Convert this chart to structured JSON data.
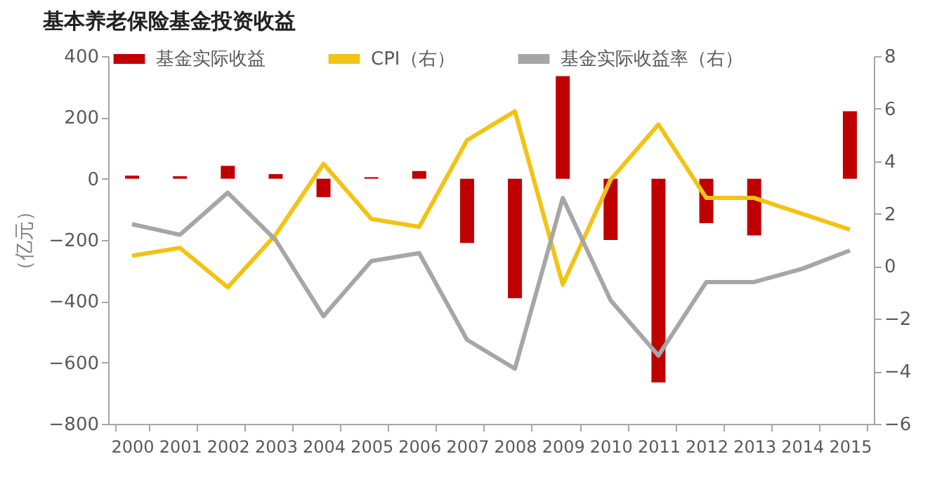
{
  "chart_data": {
    "type": "bar",
    "title": "基本养老保险基金投资收益",
    "ylabel": "（亿元）",
    "categories": [
      "2000",
      "2001",
      "2002",
      "2003",
      "2004",
      "2005",
      "2006",
      "2007",
      "2008",
      "2009",
      "2010",
      "2011",
      "2012",
      "2013",
      "2014",
      "2015"
    ],
    "series": [
      {
        "name": "基金实际收益",
        "color": "#c00000",
        "values": [
          10,
          8,
          42,
          15,
          -60,
          5,
          25,
          -210,
          -390,
          335,
          -200,
          -665,
          -145,
          -185,
          0,
          220
        ]
      },
      {
        "name": "CPI（右）",
        "type": "line",
        "axis": "y2",
        "color": "#f2c314",
        "values": [
          0.4,
          0.7,
          -0.8,
          1.2,
          3.9,
          1.8,
          1.5,
          4.8,
          5.9,
          -0.7,
          3.3,
          5.4,
          2.6,
          2.6,
          2.0,
          1.4
        ]
      },
      {
        "name": "基金实际收益率（右）",
        "type": "line",
        "axis": "y2",
        "color": "#a6a6a6",
        "values": [
          1.6,
          1.2,
          2.8,
          1.0,
          -1.9,
          0.2,
          0.5,
          -2.8,
          -3.9,
          2.6,
          -1.3,
          -3.4,
          -0.6,
          -0.6,
          -0.1,
          0.6
        ]
      }
    ],
    "ylim": [
      -800,
      400
    ],
    "yticks": [
      -800,
      -600,
      -400,
      -200,
      0,
      200,
      400
    ],
    "y2lim": [
      -6,
      8
    ],
    "y2ticks": [
      -6,
      -4,
      -2,
      0,
      2,
      4,
      6,
      8
    ],
    "grid": false,
    "legend": "top"
  }
}
